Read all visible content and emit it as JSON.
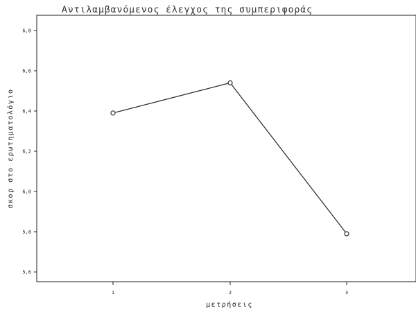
{
  "chart_data": {
    "type": "line",
    "title": "Αντιλαμβανόμενος έλεγχος της συμπεριφοράς",
    "xlabel": "μετρήσεις",
    "ylabel": "σκορ στο ερωτηματολόγιο",
    "categories": [
      "1",
      "2",
      "3"
    ],
    "x_tick_labels": [
      "1",
      "2",
      "3"
    ],
    "y_tick_labels": [
      "5,6",
      "5,8",
      "6,0",
      "6,2",
      "6,4",
      "6,6",
      "6,8"
    ],
    "ylim": [
      5.6,
      6.8
    ],
    "series": [
      {
        "values": [
          6.39,
          6.54,
          5.79
        ]
      }
    ],
    "grid": false,
    "legend": "none",
    "colors": {
      "line": "#333333",
      "marker_fill": "#ffffff",
      "axis": "#222222"
    }
  }
}
